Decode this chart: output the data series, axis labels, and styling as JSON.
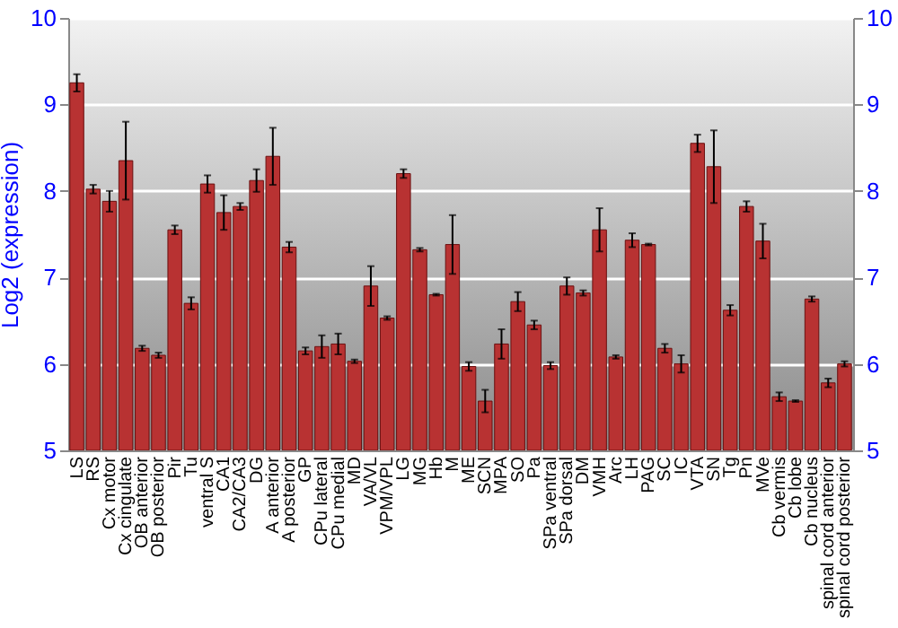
{
  "chart_data": {
    "type": "bar",
    "ylabel": "Log2 (expression)",
    "categories": [
      "LS",
      "RS",
      "Cx motor",
      "Cx cingulate",
      "OB anterior",
      "OB posterior",
      "Pir",
      "Tu",
      "ventral S",
      "CA1",
      "CA2/CA3",
      "DG",
      "A anterior",
      "A posterior",
      "GP",
      "CPu lateral",
      "CPu medial",
      "MD",
      "VA/VL",
      "VPM/VPL",
      "LG",
      "MG",
      "Hb",
      "M",
      "ME",
      "SCN",
      "MPA",
      "SO",
      "Pa",
      "SPa ventral",
      "SPa dorsal",
      "DM",
      "VMH",
      "Arc",
      "LH",
      "PAG",
      "SC",
      "IC",
      "VTA",
      "SN",
      "Tg",
      "Pn",
      "MVe",
      "Cb vermis",
      "Cb lobe",
      "Cb nucleus",
      "spinal cord anterior",
      "spinal cord posterior"
    ],
    "values": [
      9.25,
      8.02,
      7.88,
      8.35,
      6.18,
      6.1,
      7.55,
      6.7,
      8.08,
      7.75,
      7.82,
      8.12,
      8.4,
      7.35,
      6.15,
      6.2,
      6.23,
      6.03,
      6.9,
      6.53,
      8.2,
      7.32,
      6.8,
      7.38,
      5.97,
      5.57,
      6.23,
      6.72,
      6.45,
      5.98,
      6.9,
      6.82,
      7.55,
      6.08,
      7.43,
      7.38,
      6.18,
      6.0,
      8.55,
      8.28,
      6.62,
      7.82,
      7.42,
      5.62,
      5.57,
      6.75,
      5.78,
      6.0
    ],
    "errors": [
      0.1,
      0.05,
      0.12,
      0.45,
      0.03,
      0.03,
      0.05,
      0.07,
      0.1,
      0.2,
      0.04,
      0.13,
      0.33,
      0.06,
      0.04,
      0.13,
      0.12,
      0.02,
      0.23,
      0.02,
      0.05,
      0.02,
      0.01,
      0.34,
      0.05,
      0.13,
      0.17,
      0.11,
      0.05,
      0.04,
      0.1,
      0.03,
      0.25,
      0.02,
      0.08,
      0.01,
      0.05,
      0.1,
      0.1,
      0.42,
      0.06,
      0.06,
      0.2,
      0.05,
      0.01,
      0.03,
      0.05,
      0.03
    ],
    "color": "#b83232",
    "ylim": [
      5,
      10
    ],
    "yticks": [
      5,
      6,
      7,
      8,
      9,
      10
    ],
    "y2lim": [
      5,
      10
    ],
    "y2ticks": [
      5,
      6,
      7,
      8,
      9,
      10
    ],
    "grid": "y"
  }
}
